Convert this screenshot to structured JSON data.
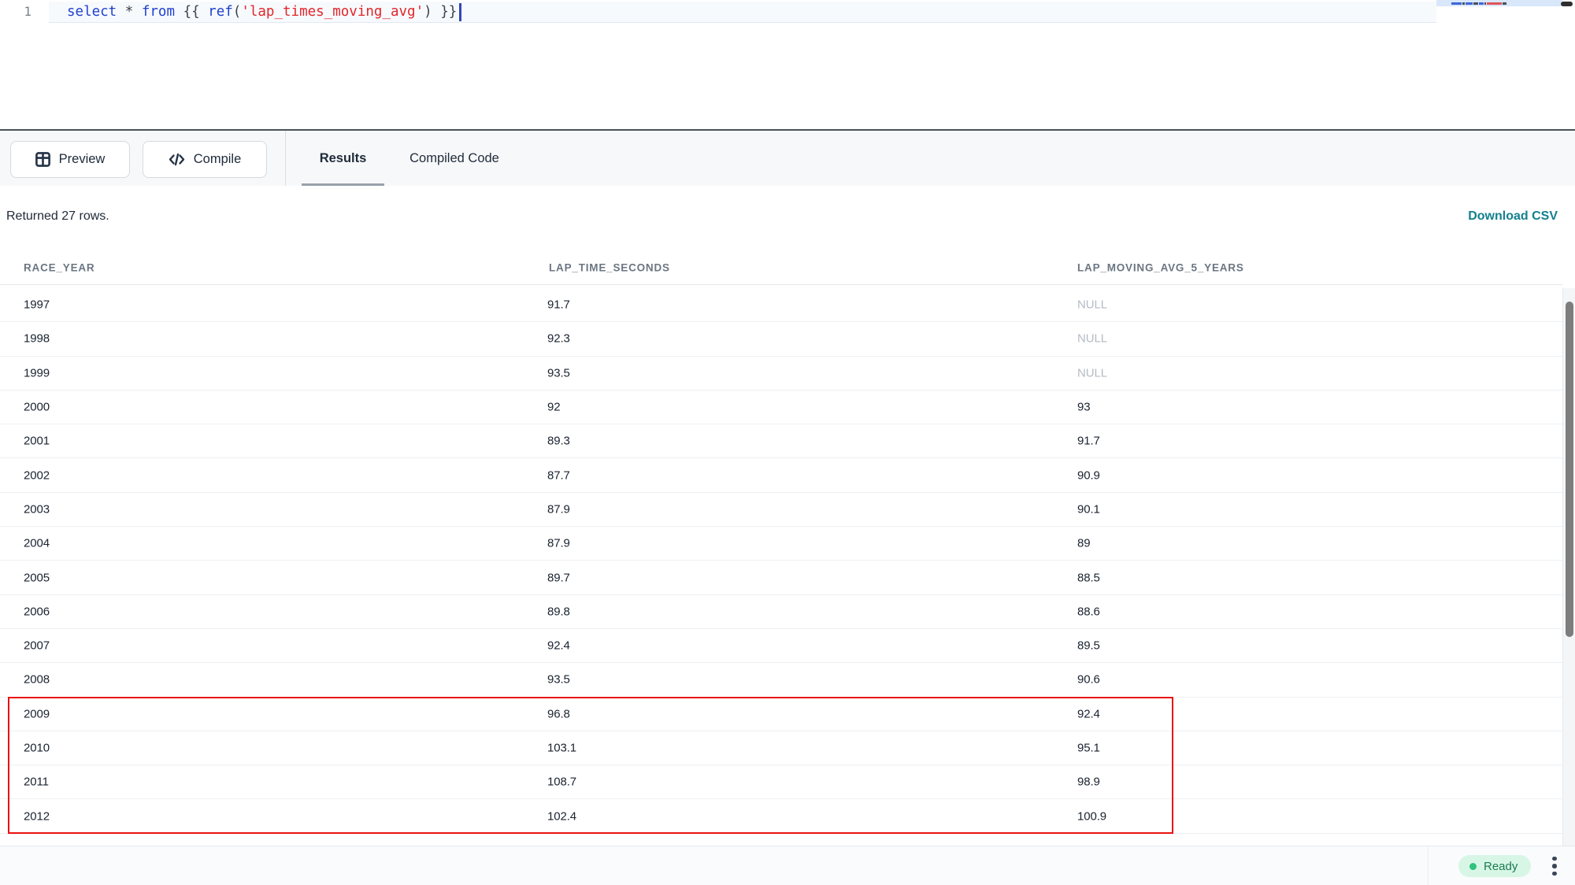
{
  "editor": {
    "line_number": "1",
    "tokens": [
      {
        "text": "select",
        "type": "kw"
      },
      {
        "text": " ",
        "type": "pl"
      },
      {
        "text": "*",
        "type": "pu"
      },
      {
        "text": " ",
        "type": "pl"
      },
      {
        "text": "from",
        "type": "kw"
      },
      {
        "text": " ",
        "type": "pl"
      },
      {
        "text": "{{ ",
        "type": "pu"
      },
      {
        "text": "ref",
        "type": "kw"
      },
      {
        "text": "(",
        "type": "pu"
      },
      {
        "text": "'lap_times_moving_avg'",
        "type": "st"
      },
      {
        "text": ")",
        "type": "pu"
      },
      {
        "text": " }}",
        "type": "pu"
      }
    ],
    "minimap_marks": [
      {
        "w": 13,
        "color": "#4066d9"
      },
      {
        "w": 3,
        "color": "#4a4f57"
      },
      {
        "w": 9,
        "color": "#4066d9"
      },
      {
        "w": 6,
        "color": "#4a4f57"
      },
      {
        "w": 6,
        "color": "#4066d9"
      },
      {
        "w": 2,
        "color": "#4a4f57"
      },
      {
        "w": 19,
        "color": "#e0555a"
      },
      {
        "w": 5,
        "color": "#4a4f57"
      }
    ]
  },
  "toolbar": {
    "preview_label": "Preview",
    "compile_label": "Compile",
    "tabs": [
      {
        "label": "Results",
        "active": true
      },
      {
        "label": "Compiled Code",
        "active": false
      }
    ]
  },
  "results": {
    "summary": "Returned 27 rows.",
    "download_label": "Download CSV",
    "columns": [
      "RACE_YEAR",
      "LAP_TIME_SECONDS",
      "LAP_MOVING_AVG_5_YEARS"
    ],
    "null_display": "NULL",
    "rows": [
      [
        "1997",
        "91.7",
        "NULL"
      ],
      [
        "1998",
        "92.3",
        "NULL"
      ],
      [
        "1999",
        "93.5",
        "NULL"
      ],
      [
        "2000",
        "92",
        "93"
      ],
      [
        "2001",
        "89.3",
        "91.7"
      ],
      [
        "2002",
        "87.7",
        "90.9"
      ],
      [
        "2003",
        "87.9",
        "90.1"
      ],
      [
        "2004",
        "87.9",
        "89"
      ],
      [
        "2005",
        "89.7",
        "88.5"
      ],
      [
        "2006",
        "89.8",
        "88.6"
      ],
      [
        "2007",
        "92.4",
        "89.5"
      ],
      [
        "2008",
        "93.5",
        "90.6"
      ],
      [
        "2009",
        "96.8",
        "92.4"
      ],
      [
        "2010",
        "103.1",
        "95.1"
      ],
      [
        "2011",
        "108.7",
        "98.9"
      ],
      [
        "2012",
        "102.4",
        "100.9"
      ]
    ],
    "highlight": {
      "first_row": "2009",
      "last_row": "2012",
      "color": "#ea1111"
    }
  },
  "statusbar": {
    "ready_label": "Ready"
  },
  "colors": {
    "accent_teal": "#13808e",
    "keyword_blue": "#2140cf",
    "string_red": "#e2252b",
    "ready_bg": "#d8f6e6",
    "ready_dot": "#2fc37d",
    "ready_text": "#1b7b51",
    "highlight_red": "#ea1111"
  }
}
